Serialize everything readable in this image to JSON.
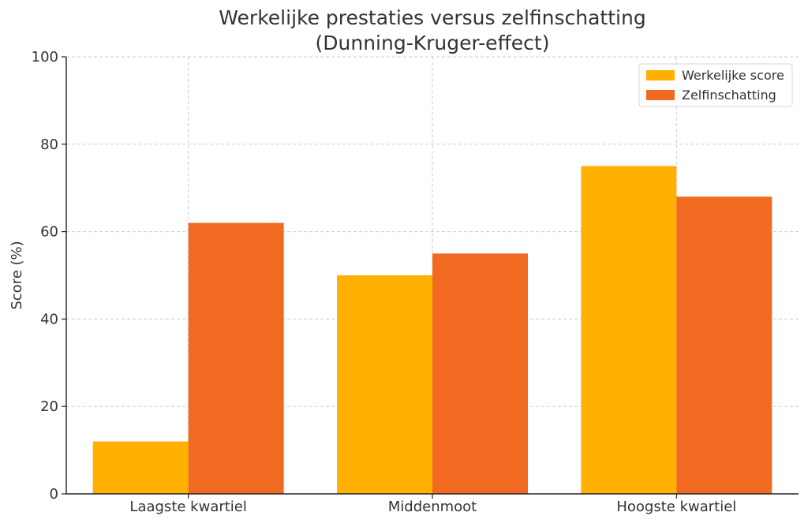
{
  "chart_data": {
    "type": "bar",
    "title_lines": [
      "Werkelijke prestaties versus zelfinschatting",
      "(Dunning-Kruger-effect)"
    ],
    "xlabel": "",
    "ylabel": "Score (%)",
    "ylim": [
      0,
      100
    ],
    "yticks": [
      0,
      20,
      40,
      60,
      80,
      100
    ],
    "categories": [
      "Laagste kwartiel",
      "Middenmoot",
      "Hoogste kwartiel"
    ],
    "series": [
      {
        "name": "Werkelijke score",
        "color": "#FFB000",
        "values": [
          12,
          50,
          75
        ]
      },
      {
        "name": "Zelfinschatting",
        "color": "#F26A21",
        "values": [
          62,
          55,
          68
        ]
      }
    ],
    "grid": true,
    "legend_position": "top-right"
  }
}
